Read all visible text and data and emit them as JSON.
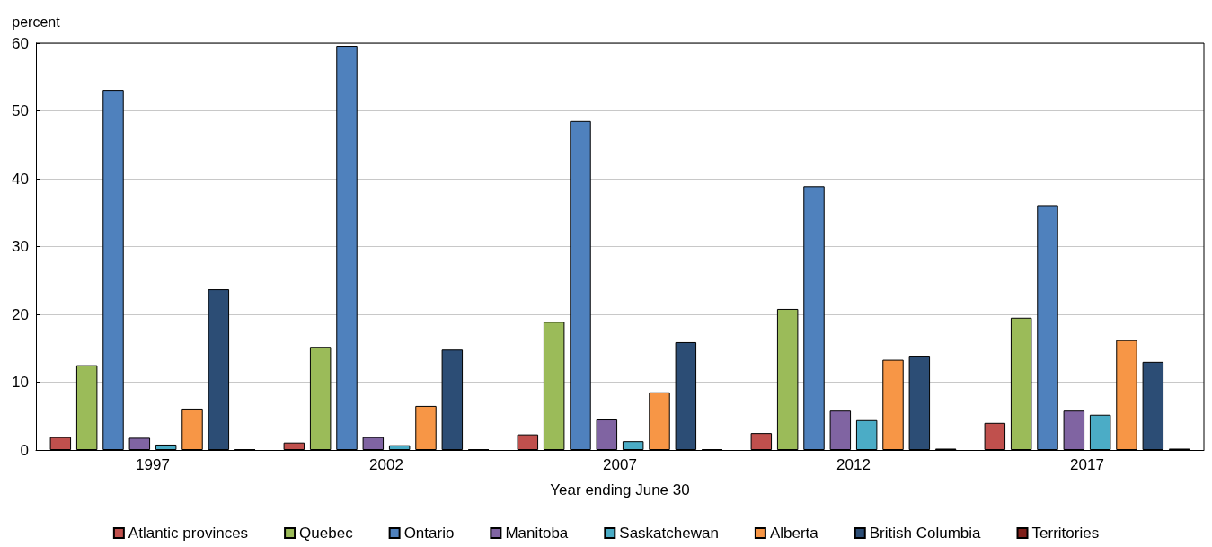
{
  "chart_data": {
    "type": "bar",
    "ylabel": "percent",
    "xlabel": "Year ending June 30",
    "categories": [
      "1997",
      "2002",
      "2007",
      "2012",
      "2017"
    ],
    "series": [
      {
        "name": "Atlantic provinces",
        "color": "#c0504d",
        "values": [
          1.9,
          1.1,
          2.3,
          2.5,
          4.0
        ]
      },
      {
        "name": "Quebec",
        "color": "#9bbb59",
        "values": [
          12.5,
          15.2,
          18.9,
          20.8,
          19.5
        ]
      },
      {
        "name": "Ontario",
        "color": "#4f81bd",
        "values": [
          53.1,
          59.6,
          48.5,
          38.9,
          36.1
        ]
      },
      {
        "name": "Manitoba",
        "color": "#8064a2",
        "values": [
          1.8,
          1.9,
          4.5,
          5.8,
          5.8
        ]
      },
      {
        "name": "Saskatchewan",
        "color": "#4bacc6",
        "values": [
          0.8,
          0.7,
          1.3,
          4.4,
          5.2
        ]
      },
      {
        "name": "Alberta",
        "color": "#f79646",
        "values": [
          6.1,
          6.5,
          8.5,
          13.3,
          16.2
        ]
      },
      {
        "name": "British Columbia",
        "color": "#2c4d75",
        "values": [
          23.7,
          14.8,
          15.9,
          13.9,
          13.0
        ]
      },
      {
        "name": "Territories",
        "color": "#7f1f1a",
        "values": [
          0.1,
          0.1,
          0.1,
          0.2,
          0.2
        ]
      }
    ],
    "ylim": [
      0,
      60
    ],
    "yticks": [
      0,
      10,
      20,
      30,
      40,
      50,
      60
    ],
    "grid": "y",
    "legend": "bottom"
  }
}
